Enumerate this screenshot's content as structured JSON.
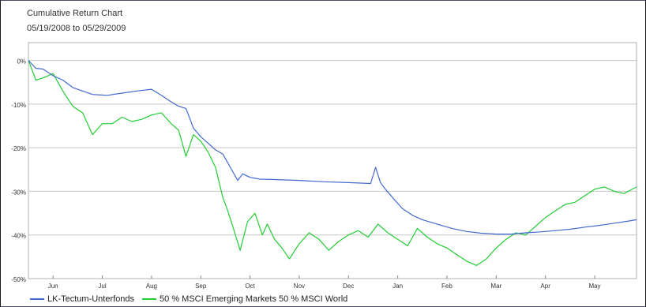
{
  "chart_data": {
    "type": "line",
    "title": "Cumulative Return Chart",
    "subtitle": "05/19/2008 to 05/29/2009",
    "ylim": [
      -50,
      3
    ],
    "yticks": [
      0,
      -10,
      -20,
      -30,
      -40,
      -50
    ],
    "ytick_labels": [
      "0%",
      "-10%",
      "-20%",
      "-30%",
      "-40%",
      "-50%"
    ],
    "xlim": [
      0,
      12.35
    ],
    "xticks": [
      0.5,
      1.5,
      2.5,
      3.5,
      4.5,
      5.5,
      6.5,
      7.5,
      8.5,
      9.5,
      10.5,
      11.5
    ],
    "xtick_labels": [
      "Jun",
      "Jul",
      "Aug",
      "Sep",
      "Oct",
      "Nov",
      "Dec",
      "Jan",
      "Feb",
      "Mar",
      "Apr",
      "May"
    ],
    "grid": "horizontal",
    "legend_position": "bottom",
    "series": [
      {
        "name": "LK-Tectum-Unterfonds",
        "color": "#4169cd",
        "x": [
          0,
          0.15,
          0.3,
          0.5,
          0.7,
          0.9,
          1.1,
          1.3,
          1.6,
          1.9,
          2.2,
          2.5,
          2.7,
          2.9,
          3.05,
          3.2,
          3.35,
          3.5,
          3.65,
          3.8,
          3.95,
          4.1,
          4.25,
          4.35,
          4.5,
          4.7,
          5.0,
          5.5,
          6.0,
          6.5,
          6.95,
          7.05,
          7.15,
          7.25,
          7.4,
          7.6,
          7.8,
          8.0,
          8.3,
          8.6,
          8.9,
          9.2,
          9.5,
          9.8,
          10.1,
          10.4,
          10.7,
          11.0,
          11.3,
          11.6,
          11.9,
          12.2,
          12.35
        ],
        "values": [
          0,
          -1.8,
          -2,
          -3.5,
          -4.5,
          -6.2,
          -7,
          -7.8,
          -8,
          -7.5,
          -7,
          -6.6,
          -8,
          -9.5,
          -10.5,
          -11,
          -15.5,
          -17.5,
          -19,
          -20.5,
          -21.5,
          -24.5,
          -27.5,
          -26,
          -26.8,
          -27.2,
          -27.3,
          -27.5,
          -27.8,
          -28,
          -28.2,
          -24.5,
          -28,
          -29.5,
          -31.5,
          -34,
          -35.5,
          -36.5,
          -37.5,
          -38.5,
          -39.2,
          -39.6,
          -39.8,
          -39.8,
          -39.5,
          -39.3,
          -39,
          -38.7,
          -38.2,
          -37.8,
          -37.3,
          -36.8,
          -36.5
        ]
      },
      {
        "name": "50 % MSCI Emerging Markets 50 % MSCI World",
        "color": "#22cc33",
        "x": [
          0,
          0.15,
          0.3,
          0.5,
          0.7,
          0.9,
          1.1,
          1.3,
          1.5,
          1.7,
          1.9,
          2.1,
          2.3,
          2.5,
          2.7,
          2.9,
          3.05,
          3.2,
          3.35,
          3.5,
          3.65,
          3.8,
          3.95,
          4.05,
          4.15,
          4.3,
          4.45,
          4.6,
          4.75,
          4.85,
          5.0,
          5.15,
          5.3,
          5.5,
          5.7,
          5.9,
          6.1,
          6.3,
          6.5,
          6.7,
          6.9,
          7.1,
          7.3,
          7.5,
          7.7,
          7.9,
          8.1,
          8.3,
          8.5,
          8.7,
          8.9,
          9.1,
          9.3,
          9.5,
          9.7,
          9.9,
          10.1,
          10.3,
          10.5,
          10.7,
          10.9,
          11.1,
          11.3,
          11.5,
          11.7,
          11.9,
          12.1,
          12.35
        ],
        "values": [
          0,
          -4.5,
          -4,
          -3,
          -7,
          -10.5,
          -12,
          -17,
          -14.5,
          -14.5,
          -13,
          -14,
          -13.5,
          -12.5,
          -12,
          -14.5,
          -16,
          -22,
          -17,
          -18.5,
          -21,
          -24.5,
          -31.5,
          -34.5,
          -38,
          -43.5,
          -37,
          -35,
          -40,
          -37.5,
          -41,
          -43,
          -45.5,
          -42,
          -39.5,
          -41,
          -43.5,
          -41.5,
          -40,
          -39,
          -40.5,
          -37.5,
          -39.5,
          -41,
          -42.5,
          -38.5,
          -40.5,
          -42,
          -43,
          -44.5,
          -46,
          -47,
          -45.5,
          -43,
          -41,
          -39.5,
          -40,
          -38,
          -36,
          -34.5,
          -33,
          -32.5,
          -31,
          -29.5,
          -29,
          -30,
          -30.5,
          -29
        ]
      }
    ]
  }
}
